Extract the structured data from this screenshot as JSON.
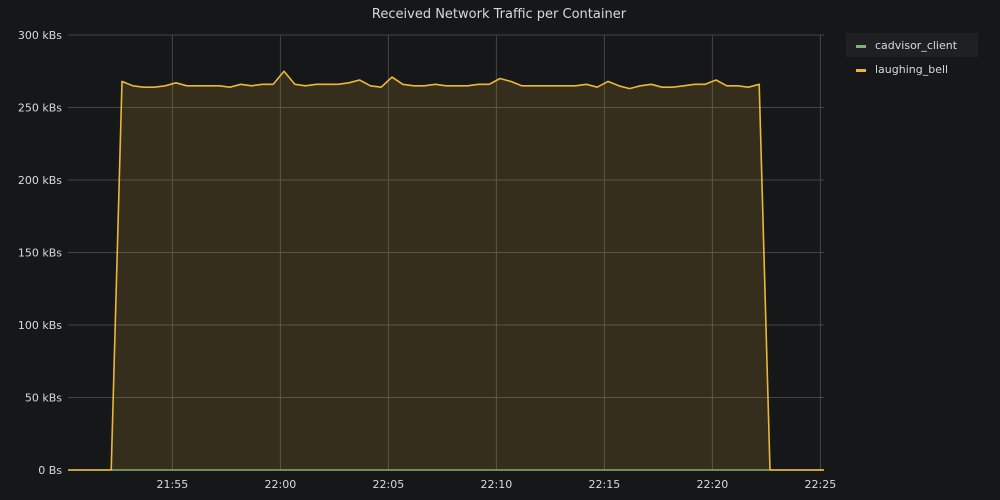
{
  "chart_data": {
    "type": "area",
    "title": "Received Network Traffic per Container",
    "xlabel": "",
    "ylabel": "",
    "grid": true,
    "legend_position": "top-right",
    "x_ticks": [
      "21:55",
      "22:00",
      "22:05",
      "22:10",
      "22:15",
      "22:20",
      "22:25"
    ],
    "y_ticks": [
      "0 Bs",
      "50 kBs",
      "100 kBs",
      "150 kBs",
      "200 kBs",
      "250 kBs",
      "300 kBs"
    ],
    "xlim": [
      "21:50:10",
      "22:25:10"
    ],
    "ylim": [
      0,
      300
    ],
    "y_unit": "kBs",
    "series": [
      {
        "name": "cadvisor_client",
        "color": "#7eb26d",
        "x": [
          "21:50:10",
          "22:25:10"
        ],
        "values": [
          0,
          0
        ]
      },
      {
        "name": "laughing_bell",
        "color": "#eab839",
        "x": [
          "21:50:10",
          "21:51:10",
          "21:52:10",
          "21:52:40",
          "21:53:10",
          "21:53:40",
          "21:54:10",
          "21:54:40",
          "21:55:10",
          "21:55:40",
          "21:56:10",
          "21:56:40",
          "21:57:10",
          "21:57:40",
          "21:58:10",
          "21:58:40",
          "21:59:10",
          "21:59:40",
          "22:00:10",
          "22:00:40",
          "22:01:10",
          "22:01:40",
          "22:02:10",
          "22:02:40",
          "22:03:10",
          "22:03:40",
          "22:04:10",
          "22:04:40",
          "22:05:10",
          "22:05:40",
          "22:06:10",
          "22:06:40",
          "22:07:10",
          "22:07:40",
          "22:08:10",
          "22:08:40",
          "22:09:10",
          "22:09:40",
          "22:10:10",
          "22:10:40",
          "22:11:10",
          "22:11:40",
          "22:12:10",
          "22:12:40",
          "22:13:10",
          "22:13:40",
          "22:14:10",
          "22:14:40",
          "22:15:10",
          "22:15:40",
          "22:16:10",
          "22:16:40",
          "22:17:10",
          "22:17:40",
          "22:18:10",
          "22:18:40",
          "22:19:10",
          "22:19:40",
          "22:20:10",
          "22:20:40",
          "22:21:10",
          "22:21:40",
          "22:22:10",
          "22:22:40",
          "22:23:10",
          "22:24:10",
          "22:25:10"
        ],
        "values": [
          0,
          0,
          0,
          268,
          265,
          264,
          264,
          265,
          267,
          265,
          265,
          265,
          265,
          264,
          266,
          265,
          266,
          266,
          275,
          266,
          265,
          266,
          266,
          266,
          267,
          269,
          265,
          264,
          271,
          266,
          265,
          265,
          266,
          265,
          265,
          265,
          266,
          266,
          270,
          268,
          265,
          265,
          265,
          265,
          265,
          265,
          266,
          264,
          268,
          265,
          263,
          265,
          266,
          264,
          264,
          265,
          266,
          266,
          269,
          265,
          265,
          264,
          266,
          0,
          0,
          0,
          0
        ]
      }
    ]
  }
}
